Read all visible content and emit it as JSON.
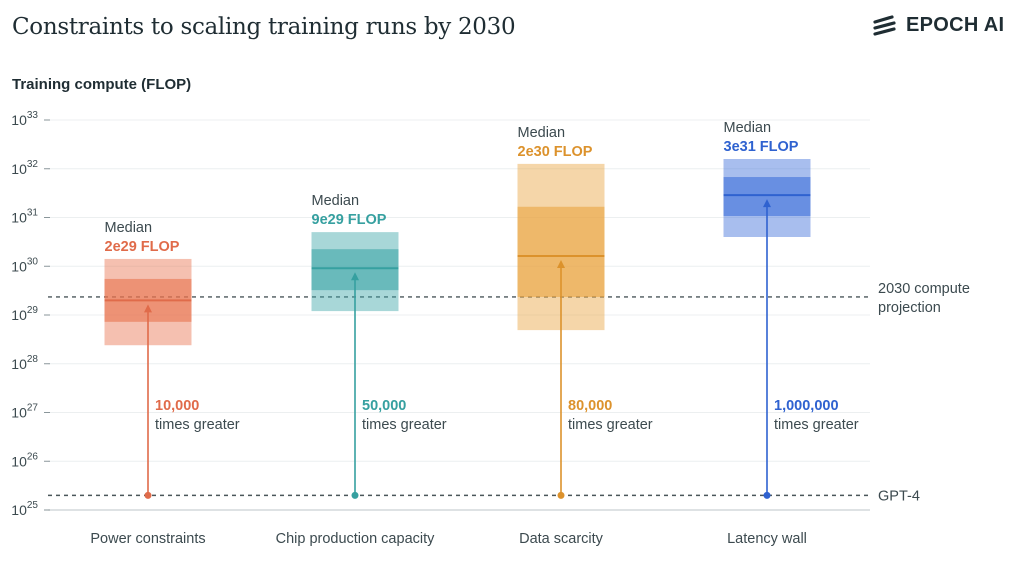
{
  "chart_data": {
    "type": "range-box",
    "title": "Constraints to scaling training runs by 2030",
    "ylabel": "Training compute (FLOP)",
    "yscale": "log",
    "ylim_exponent": [
      25,
      33
    ],
    "yticks": [
      25,
      26,
      27,
      28,
      29,
      30,
      31,
      32,
      33
    ],
    "grid": true,
    "categories": [
      "Power constraints",
      "Chip production capacity",
      "Data scarcity",
      "Latency wall"
    ],
    "series": [
      {
        "category": "Power constraints",
        "color": "#E8734F",
        "label_color": "#E06B4A",
        "median_label": "Median",
        "median_text": "2e29 FLOP",
        "median_log10": 29.3,
        "inner_range_log10": [
          28.86,
          29.74
        ],
        "outer_range_log10": [
          28.38,
          30.15
        ],
        "multiplier": "10,000",
        "multiplier_text": "times greater"
      },
      {
        "category": "Chip production capacity",
        "color": "#3FA7A8",
        "label_color": "#36A0A0",
        "median_label": "Median",
        "median_text": "9e29 FLOP",
        "median_log10": 29.96,
        "inner_range_log10": [
          29.51,
          30.35
        ],
        "outer_range_log10": [
          29.08,
          30.7
        ],
        "multiplier": "50,000",
        "multiplier_text": "times greater"
      },
      {
        "category": "Data scarcity",
        "color": "#E9A441",
        "label_color": "#DC922C",
        "median_label": "Median",
        "median_text": "2e30 FLOP",
        "median_log10": 30.21,
        "inner_range_log10": [
          29.37,
          31.22
        ],
        "outer_range_log10": [
          28.69,
          32.1
        ],
        "multiplier": "80,000",
        "multiplier_text": "times greater"
      },
      {
        "category": "Latency wall",
        "color": "#3D6FDA",
        "label_color": "#2F62D0",
        "median_label": "Median",
        "median_text": "3e31 FLOP",
        "median_log10": 31.46,
        "inner_range_log10": [
          31.03,
          31.83
        ],
        "outer_range_log10": [
          30.6,
          32.2
        ],
        "multiplier": "1,000,000",
        "multiplier_text": "times greater"
      }
    ],
    "reference_lines": [
      {
        "label_lines": [
          "2030 compute",
          "projection"
        ],
        "log10": 29.37
      },
      {
        "label_lines": [
          "GPT-4"
        ],
        "log10": 25.3
      }
    ]
  },
  "header": {
    "title": "Constraints to scaling training runs by 2030",
    "logo": "EPOCH AI"
  }
}
